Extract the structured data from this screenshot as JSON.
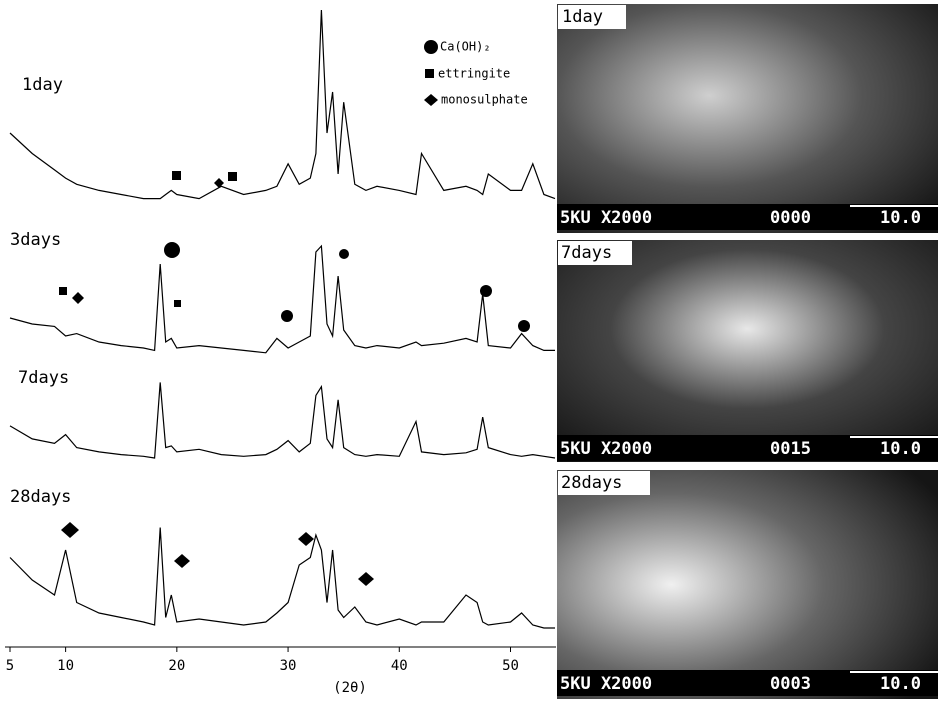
{
  "chart_data": {
    "type": "line",
    "xlabel": "(2θ)",
    "x": [
      5,
      7,
      9,
      10,
      11,
      13,
      15,
      17,
      18,
      18.5,
      19,
      19.5,
      20,
      22,
      24,
      26,
      28,
      29,
      30,
      31,
      32,
      32.5,
      33,
      33.5,
      34,
      34.5,
      35,
      36,
      37,
      38,
      40,
      41.5,
      42,
      44,
      46,
      47,
      47.5,
      48,
      50,
      51,
      52,
      53,
      54
    ],
    "series": [
      {
        "name": "1day",
        "color": "#000000",
        "values": [
          40,
          30,
          22,
          18,
          15,
          12,
          10,
          8,
          8,
          8,
          10,
          12,
          10,
          8,
          14,
          10,
          12,
          14,
          25,
          15,
          18,
          30,
          100,
          40,
          60,
          20,
          55,
          15,
          12,
          14,
          12,
          10,
          30,
          12,
          14,
          12,
          10,
          20,
          12,
          12,
          25,
          10,
          8
        ]
      },
      {
        "name": "3days",
        "color": "#000000",
        "values": [
          35,
          30,
          28,
          20,
          22,
          15,
          12,
          10,
          8,
          80,
          15,
          18,
          10,
          12,
          10,
          8,
          6,
          18,
          10,
          15,
          20,
          90,
          95,
          30,
          20,
          70,
          25,
          12,
          10,
          12,
          10,
          15,
          12,
          14,
          18,
          15,
          55,
          12,
          10,
          22,
          12,
          8,
          8
        ]
      },
      {
        "name": "7days",
        "color": "#000000",
        "values": [
          45,
          30,
          25,
          35,
          20,
          15,
          12,
          10,
          8,
          95,
          20,
          22,
          15,
          18,
          12,
          10,
          12,
          18,
          28,
          15,
          25,
          80,
          90,
          30,
          20,
          75,
          20,
          12,
          10,
          12,
          10,
          50,
          15,
          12,
          14,
          18,
          55,
          20,
          12,
          10,
          12,
          10,
          8
        ]
      },
      {
        "name": "28days",
        "color": "#000000",
        "values": [
          55,
          40,
          30,
          60,
          25,
          18,
          15,
          12,
          10,
          75,
          15,
          30,
          12,
          14,
          12,
          10,
          12,
          18,
          25,
          50,
          55,
          70,
          60,
          25,
          60,
          20,
          15,
          22,
          12,
          10,
          14,
          10,
          12,
          12,
          30,
          25,
          12,
          10,
          12,
          18,
          10,
          8,
          8
        ]
      }
    ],
    "xlim": [
      5,
      54
    ],
    "xticks": [
      5,
      10,
      20,
      30,
      40,
      50
    ],
    "phases": [
      "Ca(OH)₂",
      "ettringite",
      "monosulphate"
    ]
  },
  "sem_images": [
    {
      "caption": "5KU X2000",
      "code": "0000",
      "scale": "10.0"
    },
    {
      "caption": "5KU X2000",
      "code": "0015",
      "scale": "10.0"
    },
    {
      "caption": "5KU X2000",
      "code": "0003",
      "scale": "10.0"
    }
  ]
}
